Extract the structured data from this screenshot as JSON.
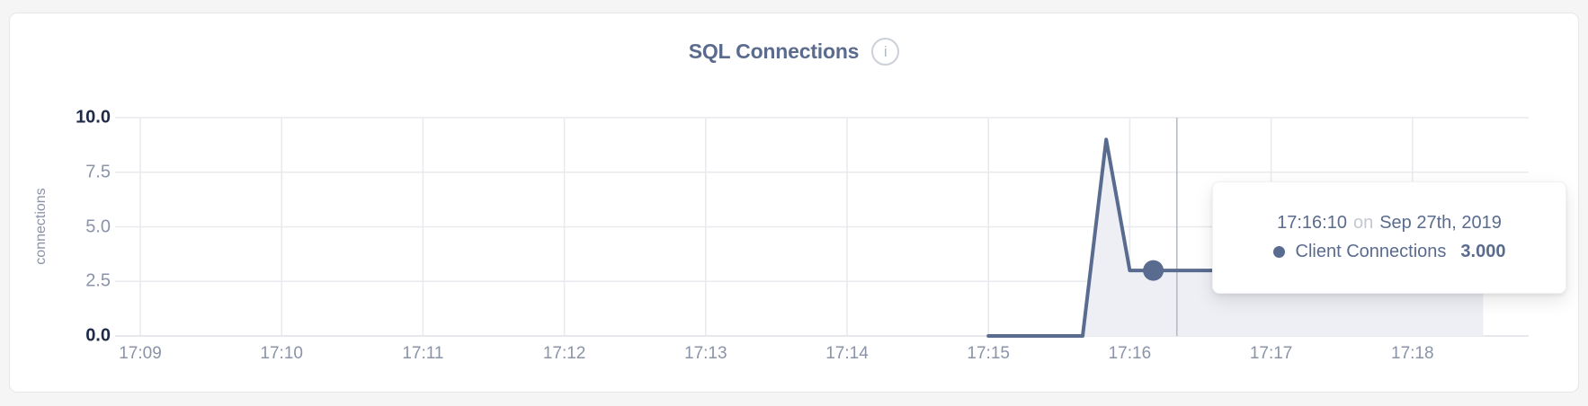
{
  "panel": {
    "title": "SQL Connections",
    "info_icon_glyph": "i"
  },
  "tooltip": {
    "time": "17:16:10",
    "conjunction": "on",
    "date": "Sep 27th, 2019",
    "series": "Client Connections",
    "value": "3.000"
  },
  "chart_data": {
    "type": "area",
    "title": "SQL Connections",
    "xlabel": "",
    "ylabel": "connections",
    "ylim": [
      0,
      10
    ],
    "grid": true,
    "legend_position": "tooltip-only",
    "y_ticks": [
      {
        "value": 0,
        "label": "0.0",
        "emphasis": true
      },
      {
        "value": 2.5,
        "label": "2.5",
        "emphasis": false
      },
      {
        "value": 5,
        "label": "5.0",
        "emphasis": false
      },
      {
        "value": 7.5,
        "label": "7.5",
        "emphasis": false
      },
      {
        "value": 10,
        "label": "10.0",
        "emphasis": true
      }
    ],
    "x_ticks": [
      {
        "time": "17:09",
        "label": "17:09"
      },
      {
        "time": "17:10",
        "label": "17:10"
      },
      {
        "time": "17:11",
        "label": "17:11"
      },
      {
        "time": "17:12",
        "label": "17:12"
      },
      {
        "time": "17:13",
        "label": "17:13"
      },
      {
        "time": "17:14",
        "label": "17:14"
      },
      {
        "time": "17:15",
        "label": "17:15"
      },
      {
        "time": "17:16",
        "label": "17:16"
      },
      {
        "time": "17:17",
        "label": "17:17"
      },
      {
        "time": "17:18",
        "label": "17:18"
      }
    ],
    "series": [
      {
        "name": "Client Connections",
        "points": [
          {
            "time": "17:15:00",
            "value": 0
          },
          {
            "time": "17:15:40",
            "value": 0
          },
          {
            "time": "17:15:50",
            "value": 9
          },
          {
            "time": "17:16:00",
            "value": 3
          },
          {
            "time": "17:18:30",
            "value": 3
          }
        ]
      }
    ],
    "highlighted_point": {
      "time": "17:16:10",
      "value": 3,
      "value_label": "3.000"
    },
    "crosshair_time": "17:16:20",
    "colors": {
      "line": "#5a6b90",
      "fill": "#edeff5",
      "grid": "#e9e9ee",
      "baseline": "#e0e0e6",
      "crosshair": "#b4b8c2",
      "tick_label": "#8a93a8",
      "tick_label_emphasis": "#1f2b49",
      "title": "#5a6b8e",
      "tooltip_text": "#5a6b8e",
      "tooltip_muted": "#c3c8d1"
    }
  }
}
